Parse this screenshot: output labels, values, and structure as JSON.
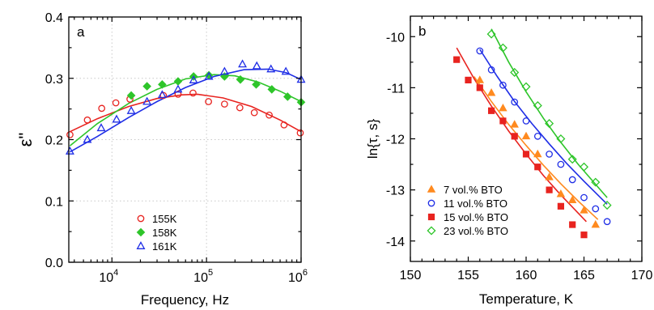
{
  "chart_data": [
    {
      "type": "scatter",
      "panel": "a",
      "xlabel": "Frequency, Hz",
      "ylabel": "ε\"",
      "xscale": "log",
      "xlim": [
        3500,
        1000000
      ],
      "ylim": [
        0.0,
        0.4
      ],
      "grid": true,
      "legend_position": "lower-center",
      "x_ticks": [
        {
          "value": 10000,
          "base": "10",
          "exp": "4"
        },
        {
          "value": 100000,
          "base": "10",
          "exp": "5"
        },
        {
          "value": 1000000,
          "base": "10",
          "exp": "6"
        }
      ],
      "y_ticks": [
        {
          "value": 0.0,
          "label": "0.0"
        },
        {
          "value": 0.1,
          "label": "0.1"
        },
        {
          "value": 0.2,
          "label": "0.2"
        },
        {
          "value": 0.3,
          "label": "0.3"
        },
        {
          "value": 0.4,
          "label": "0.4"
        }
      ],
      "series": [
        {
          "name": "155K",
          "color": "#e8231f",
          "marker": "circle-open",
          "x": [
            3600,
            5500,
            7800,
            11000,
            15500,
            35000,
            50000,
            72000,
            105000,
            155000,
            225000,
            320000,
            460000,
            660000,
            980000
          ],
          "y": [
            0.208,
            0.232,
            0.251,
            0.26,
            0.266,
            0.272,
            0.274,
            0.276,
            0.262,
            0.258,
            0.252,
            0.244,
            0.24,
            0.224,
            0.211
          ],
          "fit_x": [
            3600,
            7000,
            15000,
            30000,
            55000,
            80000,
            150000,
            300000,
            600000,
            1000000
          ],
          "fit_y": [
            0.213,
            0.234,
            0.254,
            0.267,
            0.273,
            0.274,
            0.268,
            0.254,
            0.232,
            0.213
          ]
        },
        {
          "name": "158K",
          "color": "#2ec52a",
          "marker": "diamond-filled",
          "x": [
            16000,
            23500,
            34000,
            50000,
            73000,
            106000,
            155000,
            228000,
            335000,
            490000,
            720000,
            1000000
          ],
          "y": [
            0.272,
            0.287,
            0.29,
            0.295,
            0.303,
            0.305,
            0.303,
            0.298,
            0.29,
            0.282,
            0.27,
            0.261
          ],
          "fit_x": [
            3600,
            7000,
            15000,
            30000,
            60000,
            120000,
            200000,
            350000,
            600000,
            1000000
          ],
          "fit_y": [
            0.19,
            0.226,
            0.259,
            0.282,
            0.299,
            0.306,
            0.304,
            0.294,
            0.279,
            0.262
          ]
        },
        {
          "name": "161K",
          "color": "#1f2ee6",
          "marker": "triangle-open",
          "x": [
            3600,
            5500,
            7700,
            11200,
            16000,
            23500,
            34000,
            50000,
            73000,
            106000,
            155000,
            240000,
            340000,
            480000,
            690000,
            1000000
          ],
          "y": [
            0.181,
            0.2,
            0.219,
            0.233,
            0.247,
            0.262,
            0.273,
            0.282,
            0.297,
            0.303,
            0.311,
            0.323,
            0.32,
            0.315,
            0.311,
            0.298
          ],
          "fit_x": [
            3600,
            7000,
            15000,
            30000,
            60000,
            120000,
            250000,
            450000,
            700000,
            1000000
          ],
          "fit_y": [
            0.18,
            0.205,
            0.236,
            0.262,
            0.285,
            0.303,
            0.314,
            0.315,
            0.309,
            0.298
          ]
        }
      ]
    },
    {
      "type": "scatter",
      "panel": "b",
      "xlabel": "Temperature, K",
      "ylabel": "ln{τ, s}",
      "xlim": [
        150,
        170
      ],
      "ylim": [
        -14.4,
        -9.6
      ],
      "grid": false,
      "legend_position": "lower-left",
      "x_ticks": [
        {
          "value": 150,
          "label": "150"
        },
        {
          "value": 155,
          "label": "155"
        },
        {
          "value": 160,
          "label": "160"
        },
        {
          "value": 165,
          "label": "165"
        },
        {
          "value": 170,
          "label": "170"
        }
      ],
      "y_ticks": [
        {
          "value": -10,
          "label": "-10"
        },
        {
          "value": -11,
          "label": "-11"
        },
        {
          "value": -12,
          "label": "-12"
        },
        {
          "value": -13,
          "label": "-13"
        },
        {
          "value": -14,
          "label": "-14"
        }
      ],
      "series": [
        {
          "name": "7 vol.% BTO",
          "color": "#ff8a1f",
          "marker": "triangle-filled",
          "x": [
            156,
            157,
            158,
            159,
            160,
            161,
            162,
            163,
            164,
            165,
            166
          ],
          "y": [
            -10.85,
            -11.1,
            -11.4,
            -11.72,
            -11.95,
            -12.3,
            -12.75,
            -13.08,
            -13.2,
            -13.4,
            -13.68
          ],
          "fit_x": [
            155.5,
            157,
            158.5,
            160,
            161.5,
            163,
            164.5,
            166.2
          ],
          "fit_y": [
            -10.78,
            -11.27,
            -11.72,
            -12.13,
            -12.52,
            -12.88,
            -13.22,
            -13.58
          ]
        },
        {
          "name": "11 vol.% BTO",
          "color": "#1f2ee6",
          "marker": "circle-open",
          "x": [
            156,
            157,
            158,
            159,
            160,
            161,
            162,
            163,
            164,
            165,
            166,
            167
          ],
          "y": [
            -10.28,
            -10.65,
            -10.95,
            -11.28,
            -11.65,
            -11.95,
            -12.3,
            -12.5,
            -12.8,
            -13.15,
            -13.37,
            -13.62
          ],
          "fit_x": [
            156,
            157.5,
            159,
            160.5,
            162,
            163.5,
            165,
            167
          ],
          "fit_y": [
            -10.25,
            -10.78,
            -11.27,
            -11.7,
            -12.1,
            -12.48,
            -12.83,
            -13.28
          ]
        },
        {
          "name": "15 vol.% BTO",
          "color": "#e8231f",
          "marker": "square-filled",
          "x": [
            154,
            155,
            156,
            157,
            158,
            159,
            160,
            161,
            162,
            163,
            164,
            165
          ],
          "y": [
            -10.45,
            -10.85,
            -11.0,
            -11.45,
            -11.65,
            -11.95,
            -12.3,
            -12.55,
            -13.0,
            -13.32,
            -13.68,
            -13.88
          ],
          "fit_x": [
            154,
            155.5,
            157,
            158.5,
            160,
            161.5,
            163,
            165.2
          ],
          "fit_y": [
            -10.22,
            -10.82,
            -11.36,
            -11.85,
            -12.3,
            -12.72,
            -13.1,
            -13.62
          ]
        },
        {
          "name": "23 vol.% BTO",
          "color": "#2ec52a",
          "marker": "diamond-open",
          "x": [
            157,
            158,
            159,
            160,
            161,
            162,
            163,
            164,
            165,
            166,
            167
          ],
          "y": [
            -9.95,
            -10.22,
            -10.7,
            -10.98,
            -11.35,
            -11.7,
            -12.0,
            -12.4,
            -12.55,
            -12.85,
            -13.3
          ],
          "fit_x": [
            157,
            158.5,
            160,
            161.5,
            163,
            164.5,
            167
          ],
          "fit_y": [
            -9.85,
            -10.5,
            -11.08,
            -11.6,
            -12.07,
            -12.5,
            -13.15
          ]
        }
      ]
    }
  ]
}
